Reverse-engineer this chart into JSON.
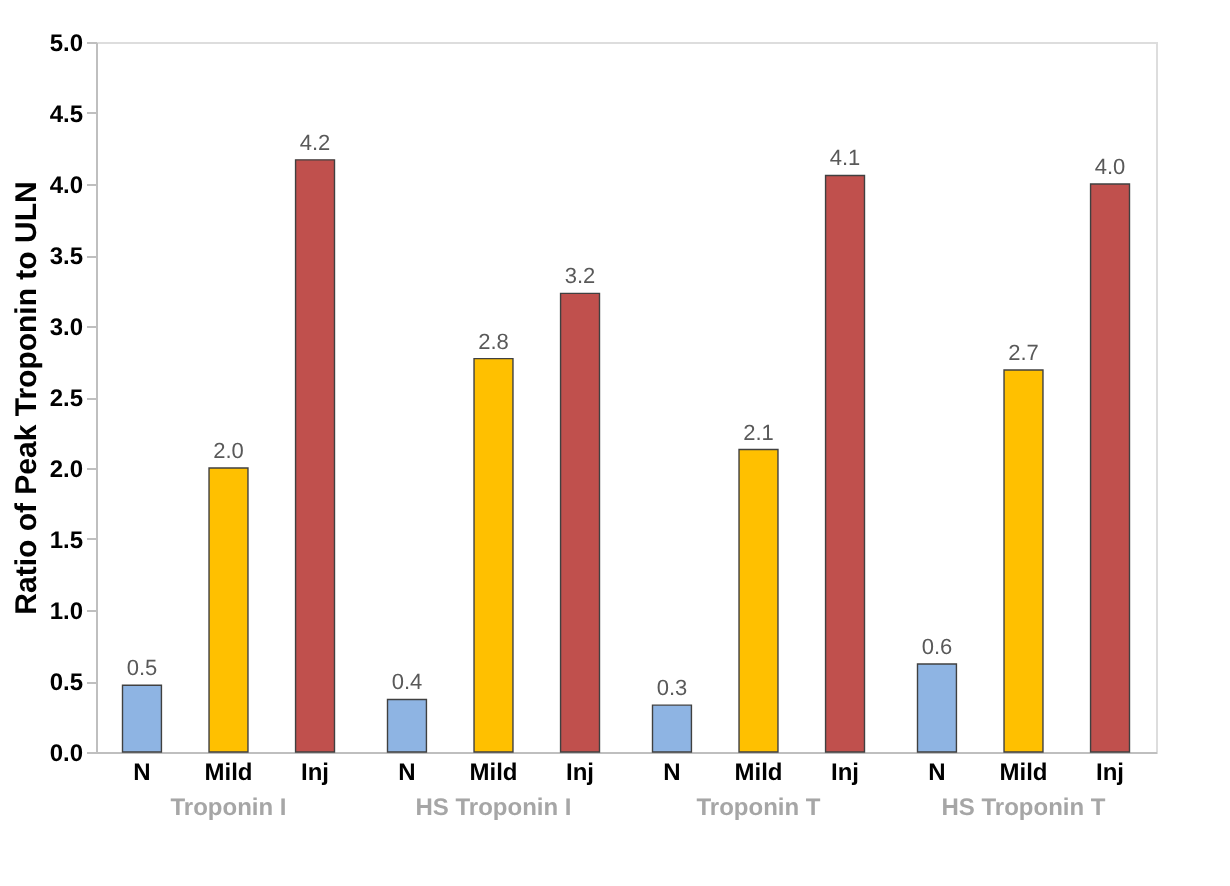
{
  "chart_data": {
    "type": "bar",
    "ylabel": "Ratio of Peak Troponin to ULN",
    "categories": [
      "Troponin I",
      "HS Troponin I",
      "Troponin T",
      "HS Troponin T"
    ],
    "series": [
      {
        "name": "N",
        "color": "#8eb4e3",
        "values": [
          0.47,
          0.37,
          0.33,
          0.62
        ],
        "value_labels": [
          "0.5",
          "0.4",
          "0.3",
          "0.6"
        ]
      },
      {
        "name": "Mild",
        "color": "#ffc000",
        "values": [
          2.0,
          2.77,
          2.13,
          2.69
        ],
        "value_labels": [
          "2.0",
          "2.8",
          "2.1",
          "2.7"
        ]
      },
      {
        "name": "Inj",
        "color": "#c0504d",
        "values": [
          4.17,
          3.23,
          4.06,
          4.0
        ],
        "value_labels": [
          "4.2",
          "3.2",
          "4.1",
          "4.0"
        ]
      }
    ],
    "ylim": [
      0,
      5
    ],
    "yticks": [
      {
        "value": 0,
        "label": "0.0"
      },
      {
        "value": 0.5,
        "label": "0.5"
      },
      {
        "value": 1,
        "label": "1.0"
      },
      {
        "value": 1.5,
        "label": "1.5"
      },
      {
        "value": 2,
        "label": "2.0"
      },
      {
        "value": 2.5,
        "label": "2.5"
      },
      {
        "value": 3,
        "label": "3.0"
      },
      {
        "value": 3.5,
        "label": "3.5"
      },
      {
        "value": 4,
        "label": "4.0"
      },
      {
        "value": 4.5,
        "label": "4.5"
      },
      {
        "value": 5,
        "label": "5.0"
      }
    ],
    "grid": false,
    "legend": false
  }
}
